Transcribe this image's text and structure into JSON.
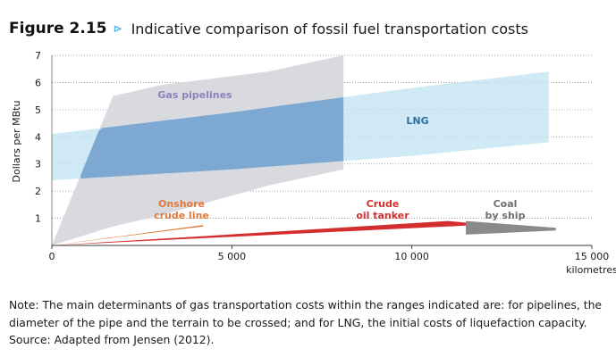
{
  "figure": {
    "number": "Figure 2.15",
    "arrow": "⊳",
    "title": "Indicative comparison of fossil fuel transportation costs"
  },
  "chart_data": {
    "type": "area",
    "ylabel": "Dollars per MBtu",
    "xlabel": "kilometres",
    "xlim": [
      0,
      15000
    ],
    "ylim": [
      0,
      7
    ],
    "grid": "horizontal dotted",
    "x_ticks": [
      0,
      5000,
      10000,
      15000
    ],
    "x_tick_labels": [
      "0",
      "5 000",
      "10 000",
      "15 000"
    ],
    "y_ticks": [
      1,
      2,
      3,
      4,
      5,
      6,
      7
    ],
    "y_tick_labels": [
      "1",
      "2",
      "3",
      "4",
      "5",
      "6",
      "7"
    ],
    "series": [
      {
        "name": "Gas pipelines",
        "color": "#d9d9e0",
        "x_range": [
          0,
          8100
        ],
        "cost_at_x": [
          {
            "x": 0,
            "low": 0,
            "high": 0
          },
          {
            "x": 1700,
            "low": 0.7,
            "high": 5.5
          },
          {
            "x": 3000,
            "low": 1.1,
            "high": 5.9
          },
          {
            "x": 6000,
            "low": 2.2,
            "high": 6.4
          },
          {
            "x": 8100,
            "low": 2.8,
            "high": 7.0
          }
        ]
      },
      {
        "name": "LNG",
        "color": "#bfe3f1",
        "x_range": [
          0,
          14000
        ],
        "cost_at_x": [
          {
            "x": 0,
            "low": 2.4,
            "high": 4.1
          },
          {
            "x": 5000,
            "low": 2.8,
            "high": 4.9
          },
          {
            "x": 10000,
            "low": 3.3,
            "high": 5.8
          },
          {
            "x": 13800,
            "low": 3.8,
            "high": 6.4
          }
        ]
      },
      {
        "name": "Onshore crude line",
        "color": "#e07a3c",
        "x_range": [
          0,
          4200
        ],
        "cost_at_x": [
          {
            "x": 0,
            "low": 0,
            "high": 0
          },
          {
            "x": 4200,
            "low": 0.7,
            "high": 0.75
          }
        ]
      },
      {
        "name": "Crude oil tanker",
        "color": "#d42d2d",
        "x_range": [
          0,
          11800
        ],
        "cost_at_x": [
          {
            "x": 0,
            "low": 0,
            "high": 0
          },
          {
            "x": 11000,
            "low": 0.7,
            "high": 0.9
          },
          {
            "x": 11800,
            "low": 0.75,
            "high": 0.8
          }
        ]
      },
      {
        "name": "Coal by ship",
        "color": "#8a8a8a",
        "x_range": [
          11500,
          14000
        ],
        "cost_at_x": [
          {
            "x": 11500,
            "low": 0.4,
            "high": 0.9
          },
          {
            "x": 14000,
            "low": 0.55,
            "high": 0.65
          }
        ]
      }
    ],
    "labels": [
      {
        "series": "Gas pipelines",
        "lines": [
          "Gas pipelines"
        ],
        "color": "#8b84b8"
      },
      {
        "series": "LNG",
        "lines": [
          "LNG"
        ],
        "color": "#2f6ea0"
      },
      {
        "series": "Onshore crude line",
        "lines": [
          "Onshore",
          "crude line"
        ],
        "color": "#e07a3c"
      },
      {
        "series": "Crude oil tanker",
        "lines": [
          "Crude",
          "oil tanker"
        ],
        "color": "#d42d2d"
      },
      {
        "series": "Coal by ship",
        "lines": [
          "Coal",
          "by ship"
        ],
        "color": "#6e6e6e"
      }
    ]
  },
  "note": "Note: The main determinants of gas transportation costs within the ranges indicated are: for pipelines, the diameter of the pipe and the terrain to be crossed; and for LNG, the initial costs of liquefaction capacity.",
  "source": "Source: Adapted from Jensen (2012)."
}
